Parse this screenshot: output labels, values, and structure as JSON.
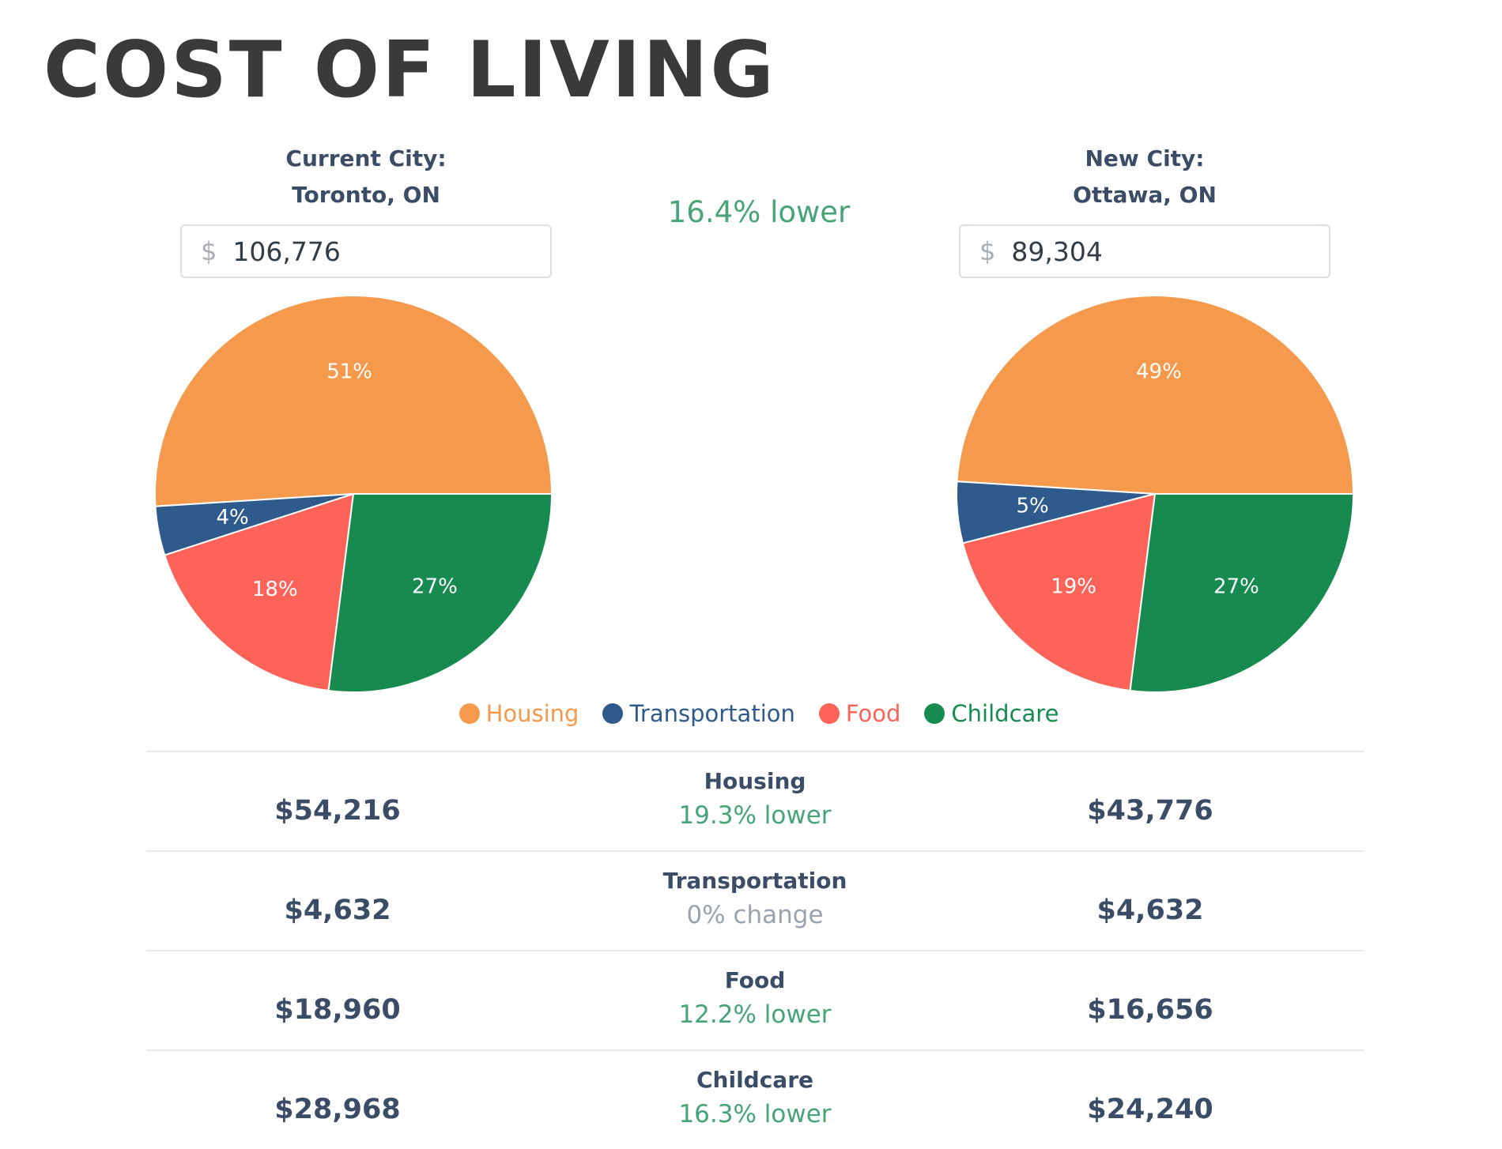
{
  "page": {
    "title": "COST OF LIVING"
  },
  "current_city": {
    "label": "Current City:",
    "name": "Toronto, ON",
    "currency_symbol": "$",
    "amount": "106,776"
  },
  "new_city": {
    "label": "New City:",
    "name": "Ottawa, ON",
    "currency_symbol": "$",
    "amount": "89,304"
  },
  "overall_difference": "16.4% lower",
  "colors": {
    "housing": "#f59a4c",
    "transportation": "#2e5b8c",
    "food": "#fd6359",
    "childcare": "#168a4f",
    "lower": "#46a477",
    "neutral": "#9aa3ad"
  },
  "legend": [
    {
      "label": "Housing",
      "color": "#f59a4c"
    },
    {
      "label": "Transportation",
      "color": "#2e5b8c"
    },
    {
      "label": "Food",
      "color": "#fd6359"
    },
    {
      "label": "Childcare",
      "color": "#168a4f"
    }
  ],
  "chart_data": [
    {
      "type": "pie",
      "title": "",
      "categories": [
        "Housing",
        "Transportation",
        "Food",
        "Childcare"
      ],
      "values": [
        51,
        4,
        18,
        27
      ],
      "labels": [
        "51%",
        "4%",
        "18%",
        "27%"
      ],
      "legend": "bottom"
    },
    {
      "type": "pie",
      "title": "",
      "categories": [
        "Housing",
        "Transportation",
        "Food",
        "Childcare"
      ],
      "values": [
        49,
        5,
        19,
        27
      ],
      "labels": [
        "49%",
        "5%",
        "19%",
        "27%"
      ],
      "legend": "bottom"
    }
  ],
  "breakdown": [
    {
      "category": "Housing",
      "current": "$54,216",
      "difference": "19.3% lower",
      "status": "lower",
      "new": "$43,776"
    },
    {
      "category": "Transportation",
      "current": "$4,632",
      "difference": "0% change",
      "status": "neutral",
      "new": "$4,632"
    },
    {
      "category": "Food",
      "current": "$18,960",
      "difference": "12.2% lower",
      "status": "lower",
      "new": "$16,656"
    },
    {
      "category": "Childcare",
      "current": "$28,968",
      "difference": "16.3% lower",
      "status": "lower",
      "new": "$24,240"
    }
  ]
}
